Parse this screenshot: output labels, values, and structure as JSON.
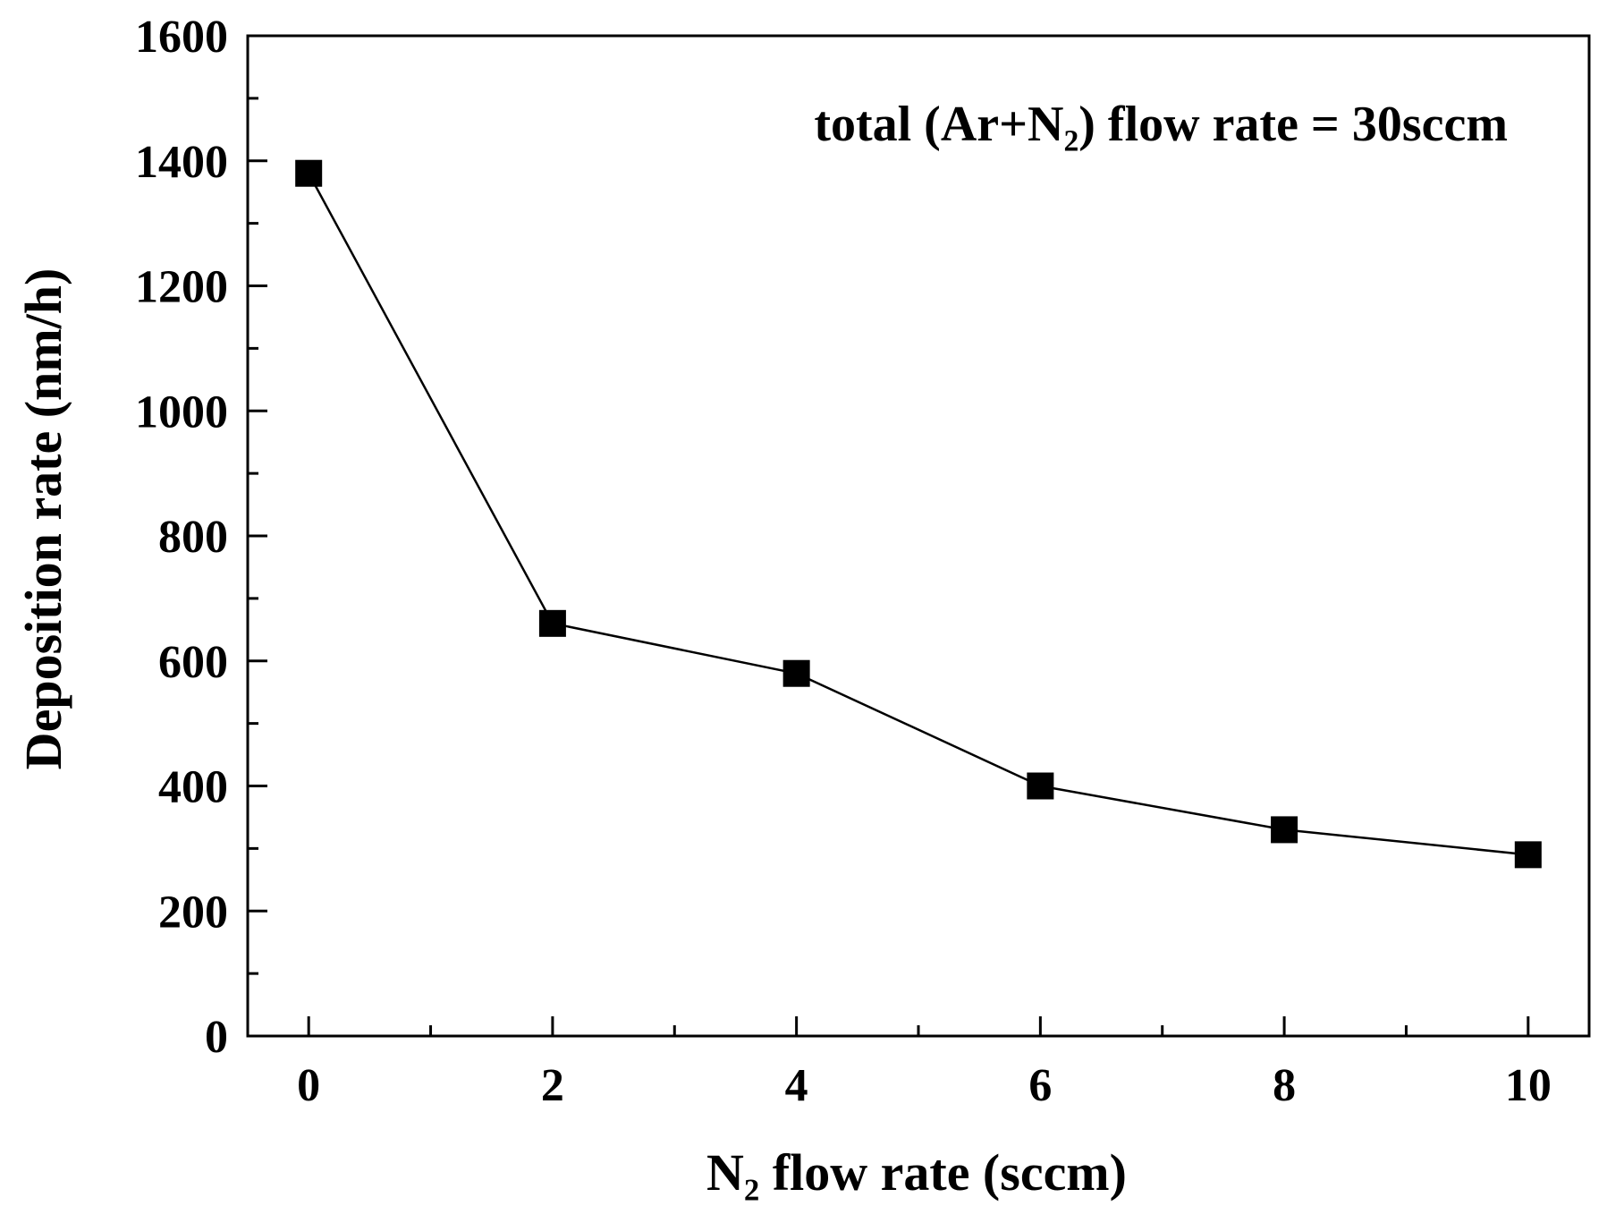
{
  "chart_data": {
    "type": "line",
    "title": "",
    "xlabel": "N₂ flow rate (sccm)",
    "ylabel": "Deposition rate (nm/h)",
    "annotation": "total (Ar+N₂) flow rate = 30sccm",
    "xlim": [
      -0.5,
      10.5
    ],
    "ylim": [
      0,
      1600
    ],
    "x_ticks": [
      0,
      2,
      4,
      6,
      8,
      10
    ],
    "x_tick_labels": [
      "0",
      "2",
      "4",
      "6",
      "8",
      "10"
    ],
    "x_minor_ticks": [
      1,
      3,
      5,
      7,
      9
    ],
    "y_ticks": [
      0,
      200,
      400,
      600,
      800,
      1000,
      1200,
      1400,
      1600
    ],
    "y_tick_labels": [
      "0",
      "200",
      "400",
      "600",
      "800",
      "1000",
      "1200",
      "1400",
      "1600"
    ],
    "y_minor_ticks": [
      100,
      300,
      500,
      700,
      900,
      1100,
      1300,
      1500
    ],
    "grid": false,
    "series": [
      {
        "name": "Deposition rate",
        "x": [
          0,
          2,
          4,
          6,
          8,
          10
        ],
        "values": [
          1380,
          660,
          580,
          400,
          330,
          290
        ],
        "marker": "square",
        "color": "#000000"
      }
    ]
  }
}
